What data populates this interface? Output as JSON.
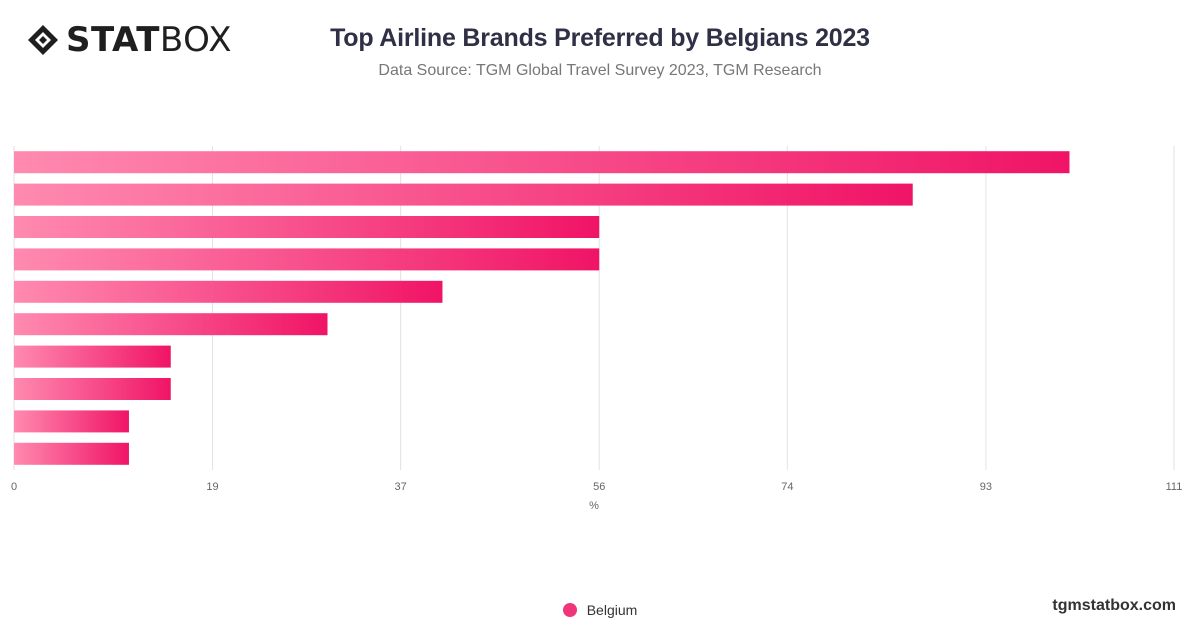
{
  "brand": {
    "logo_bold": "STAT",
    "logo_light": "BOX",
    "site": "tgmstatbox.com"
  },
  "header": {
    "title": "Top Airline Brands Preferred by Belgians 2023",
    "subtitle": "Data Source: TGM Global Travel Survey 2023, TGM Research"
  },
  "colors": {
    "bar_start": "#ff8ab0",
    "bar_end": "#f01466",
    "grid": "#e2e2e2",
    "legend_swatch": "#f0357a"
  },
  "chart_data": {
    "type": "bar",
    "orientation": "horizontal",
    "categories": [
      "",
      "",
      "",
      "",
      "",
      "",
      "",
      "",
      "",
      ""
    ],
    "series": [
      {
        "name": "Belgium",
        "values": [
          101,
          86,
          56,
          56,
          41,
          30,
          15,
          15,
          11,
          11
        ]
      }
    ],
    "xlabel": "%",
    "ylabel": "",
    "xlim": [
      0,
      111
    ],
    "xticks": [
      0,
      19,
      37,
      56,
      74,
      93,
      111
    ],
    "grid": true,
    "legend": "bottom-center"
  }
}
